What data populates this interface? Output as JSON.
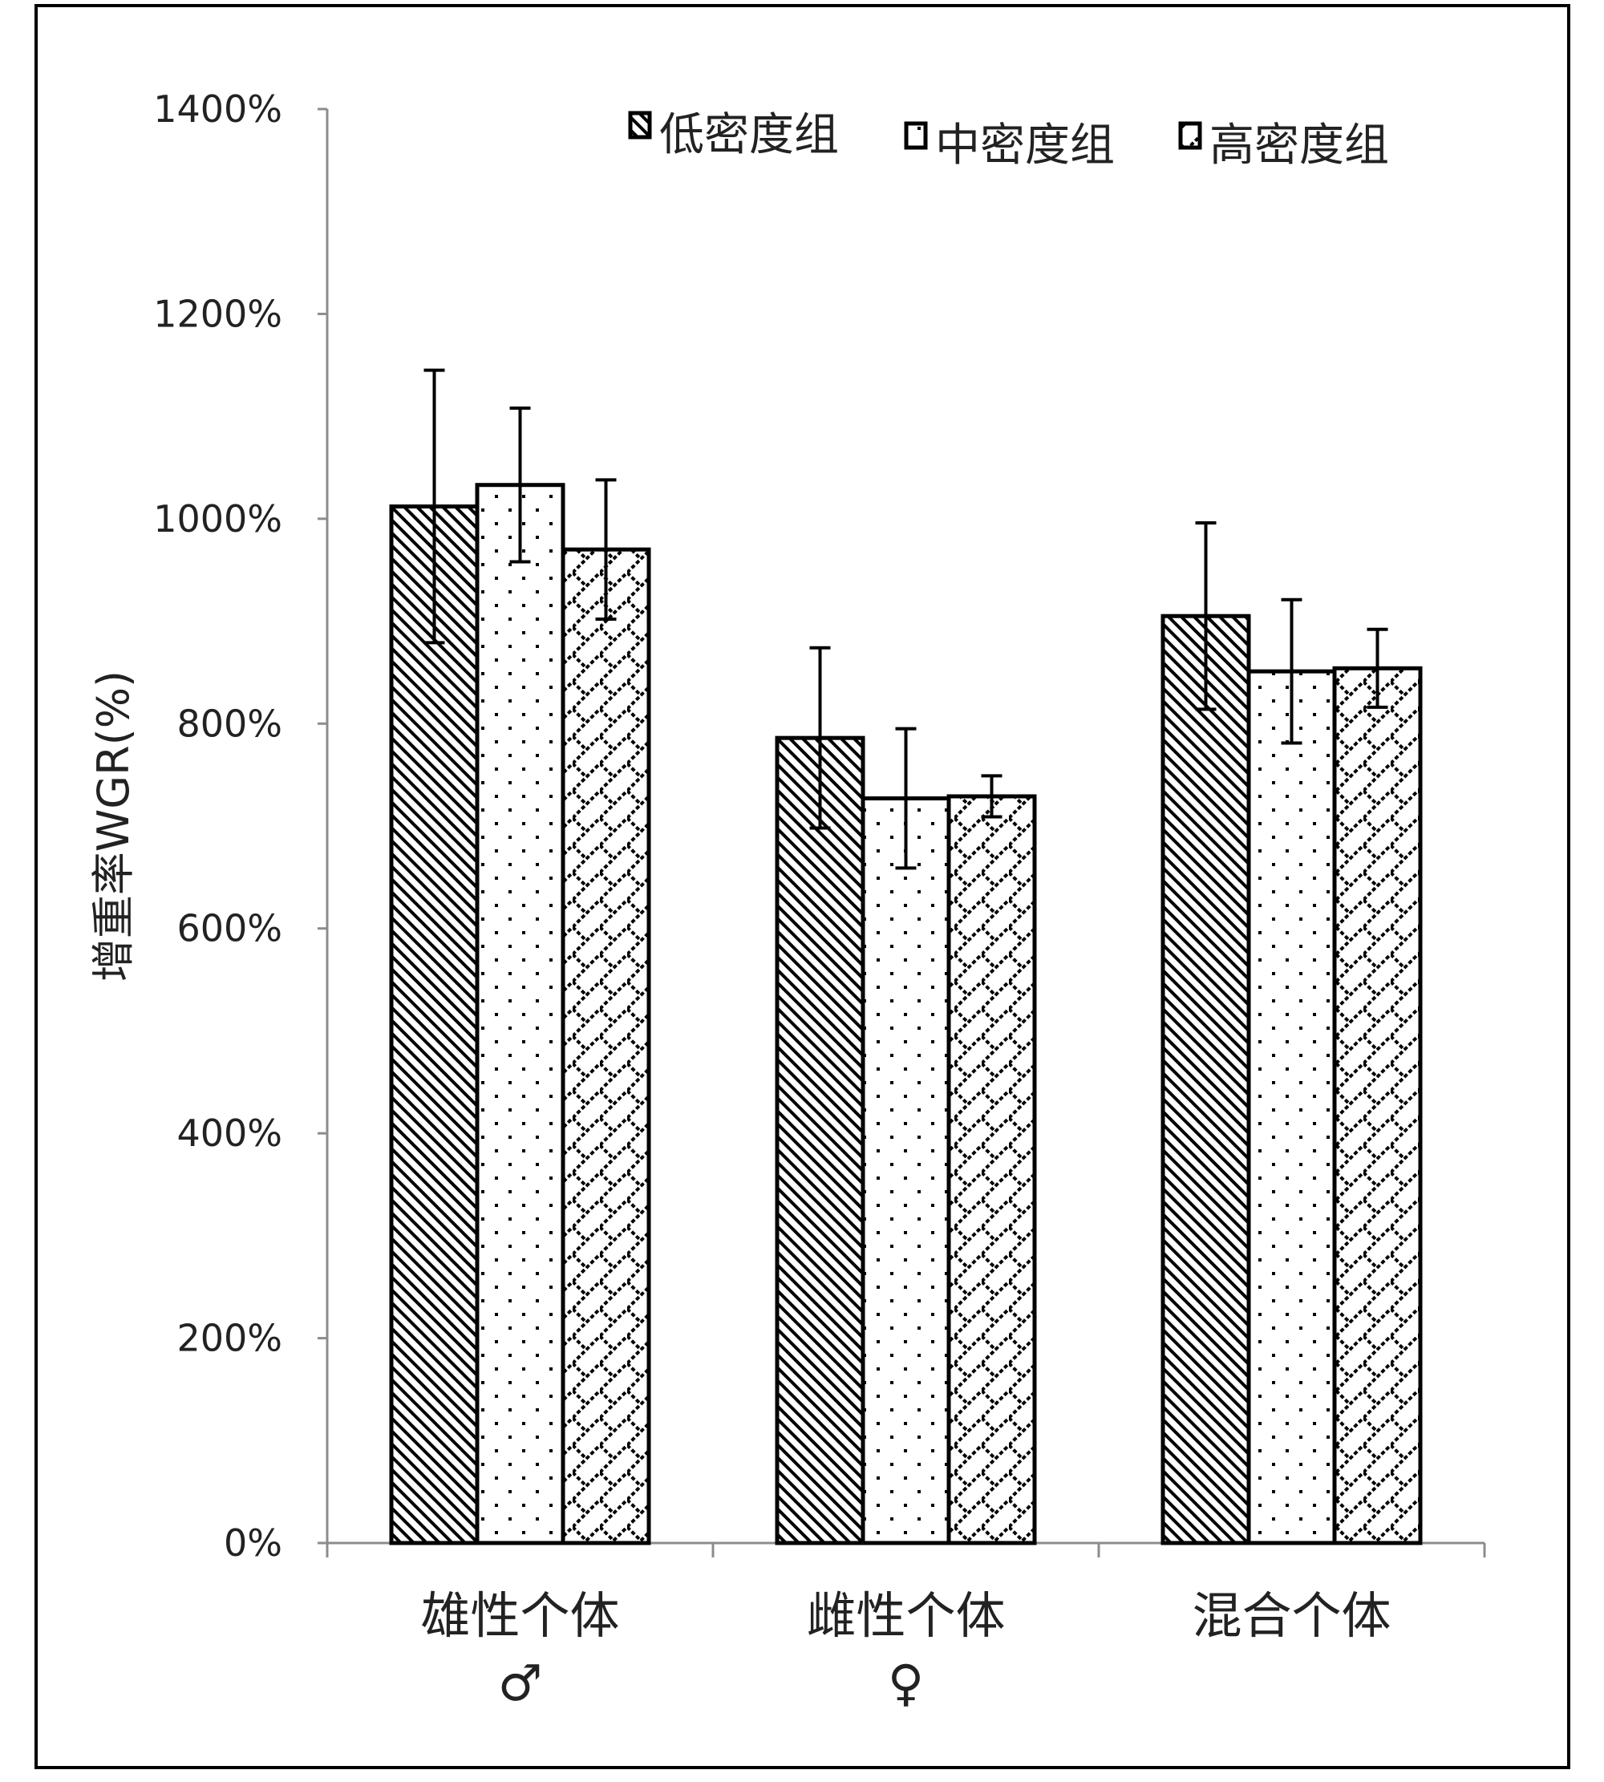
{
  "chart_data": {
    "type": "bar",
    "title": "",
    "xlabel": "",
    "ylabel": "增重率WGR(%)",
    "ylim": [
      0,
      1400
    ],
    "yticks": [
      "0%",
      "200%",
      "400%",
      "600%",
      "800%",
      "1000%",
      "1200%",
      "1400%"
    ],
    "categories": [
      "雄性个体",
      "雌性个体",
      "混合个体"
    ],
    "category_symbols": [
      "♂",
      "♀",
      ""
    ],
    "grid": false,
    "legend_position": "top-right",
    "series": [
      {
        "name": "低密度组",
        "pattern": "diagonal-hatch",
        "values": [
          1012,
          786,
          905
        ],
        "errors": [
          133,
          88,
          91
        ]
      },
      {
        "name": "中密度组",
        "pattern": "dots",
        "values": [
          1033,
          727,
          851
        ],
        "errors": [
          75,
          68,
          70
        ]
      },
      {
        "name": "高密度组",
        "pattern": "zigzag-cross",
        "values": [
          970,
          729,
          854
        ],
        "errors": [
          68,
          20,
          38
        ]
      }
    ],
    "colors": {
      "ink": "#000000",
      "axis": "#8c8c8c",
      "background": "#ffffff"
    }
  }
}
